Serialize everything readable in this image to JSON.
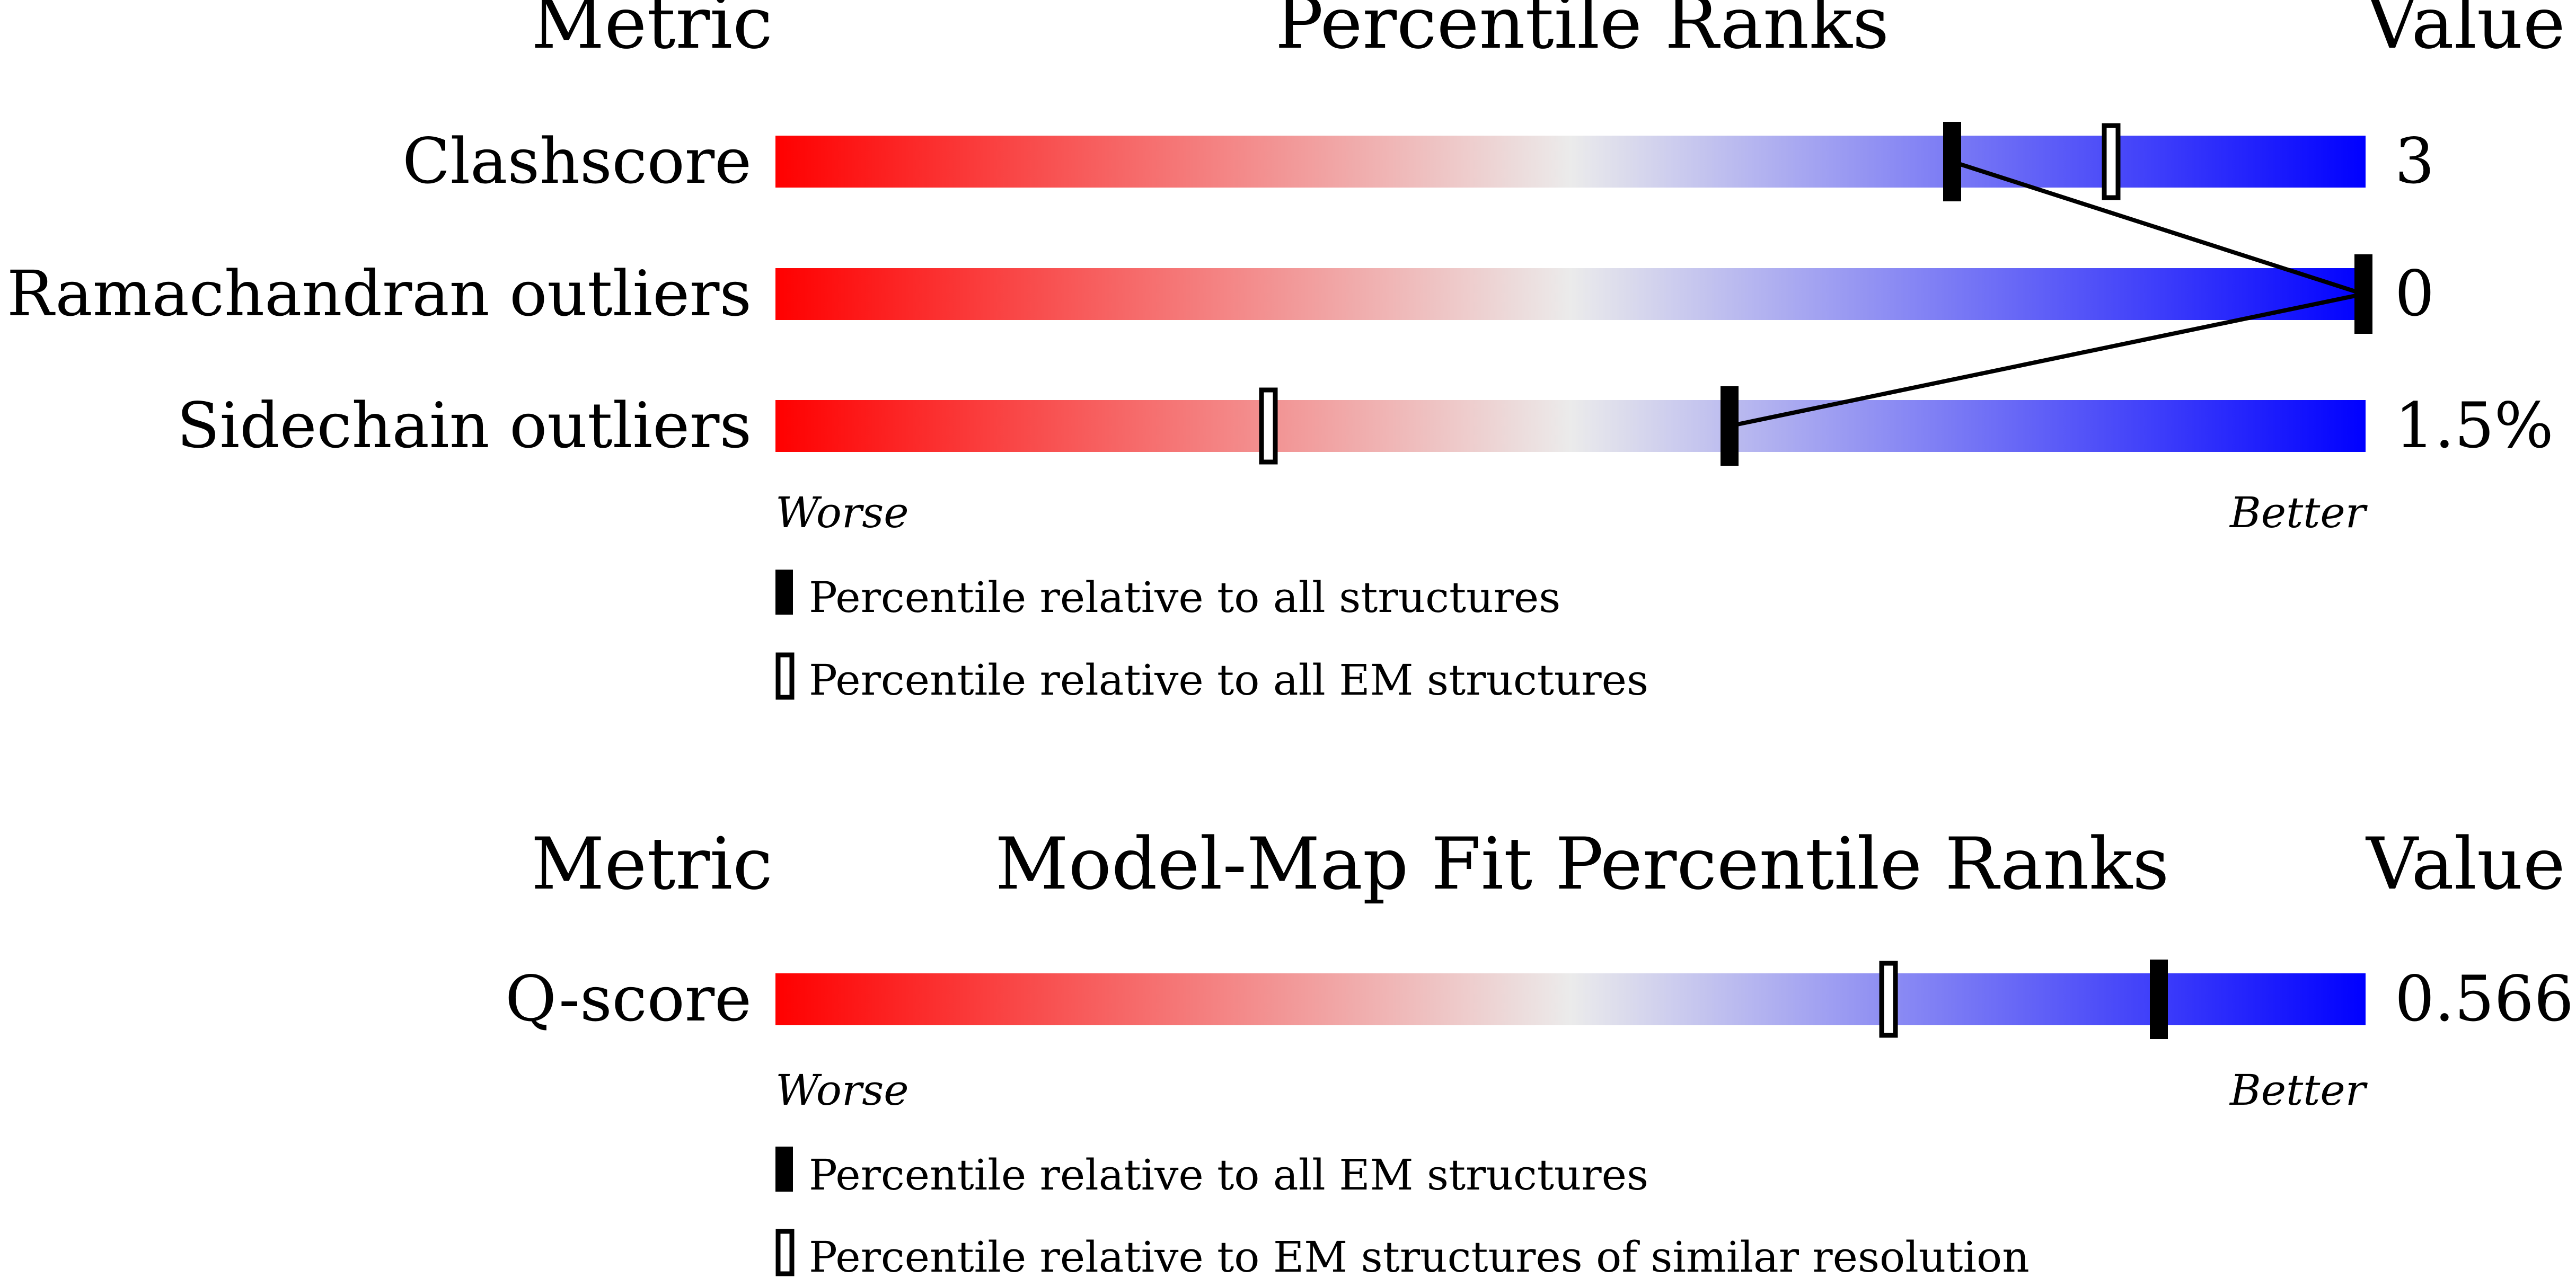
{
  "panel1": {
    "header_metric": "Metric",
    "header_title": "Percentile Ranks",
    "header_value": "Value",
    "worse_label": "Worse",
    "better_label": "Better",
    "legend": [
      {
        "marker": "filled",
        "text": "Percentile relative to all structures"
      },
      {
        "marker": "open",
        "text": "Percentile relative to all EM structures"
      }
    ]
  },
  "panel2": {
    "header_metric": "Metric",
    "header_title": "Model-Map Fit Percentile Ranks",
    "header_value": "Value",
    "worse_label": "Worse",
    "better_label": "Better",
    "legend": [
      {
        "marker": "filled",
        "text": "Percentile relative to all EM structures"
      },
      {
        "marker": "open",
        "text": "Percentile relative to EM structures of similar resolution"
      }
    ]
  },
  "chart_data": [
    {
      "type": "percentile-slider",
      "title": "Percentile Ranks",
      "xlim": [
        0,
        100
      ],
      "colors": {
        "worse": "#ff0000",
        "middle": "#ebebeb",
        "better": "#0000ff"
      },
      "rows": [
        {
          "metric": "Clashscore",
          "value": "3",
          "percentile_all": 74,
          "percentile_em": 84
        },
        {
          "metric": "Ramachandran outliers",
          "value": "0",
          "percentile_all": 100,
          "percentile_em": null
        },
        {
          "metric": "Sidechain outliers",
          "value": "1.5%",
          "percentile_all": 60,
          "percentile_em": 31
        }
      ]
    },
    {
      "type": "percentile-slider",
      "title": "Model-Map Fit Percentile Ranks",
      "xlim": [
        0,
        100
      ],
      "colors": {
        "worse": "#ff0000",
        "middle": "#ebebeb",
        "better": "#0000ff"
      },
      "rows": [
        {
          "metric": "Q-score",
          "value": "0.566",
          "percentile_all": 87,
          "percentile_em": 70
        }
      ]
    }
  ]
}
